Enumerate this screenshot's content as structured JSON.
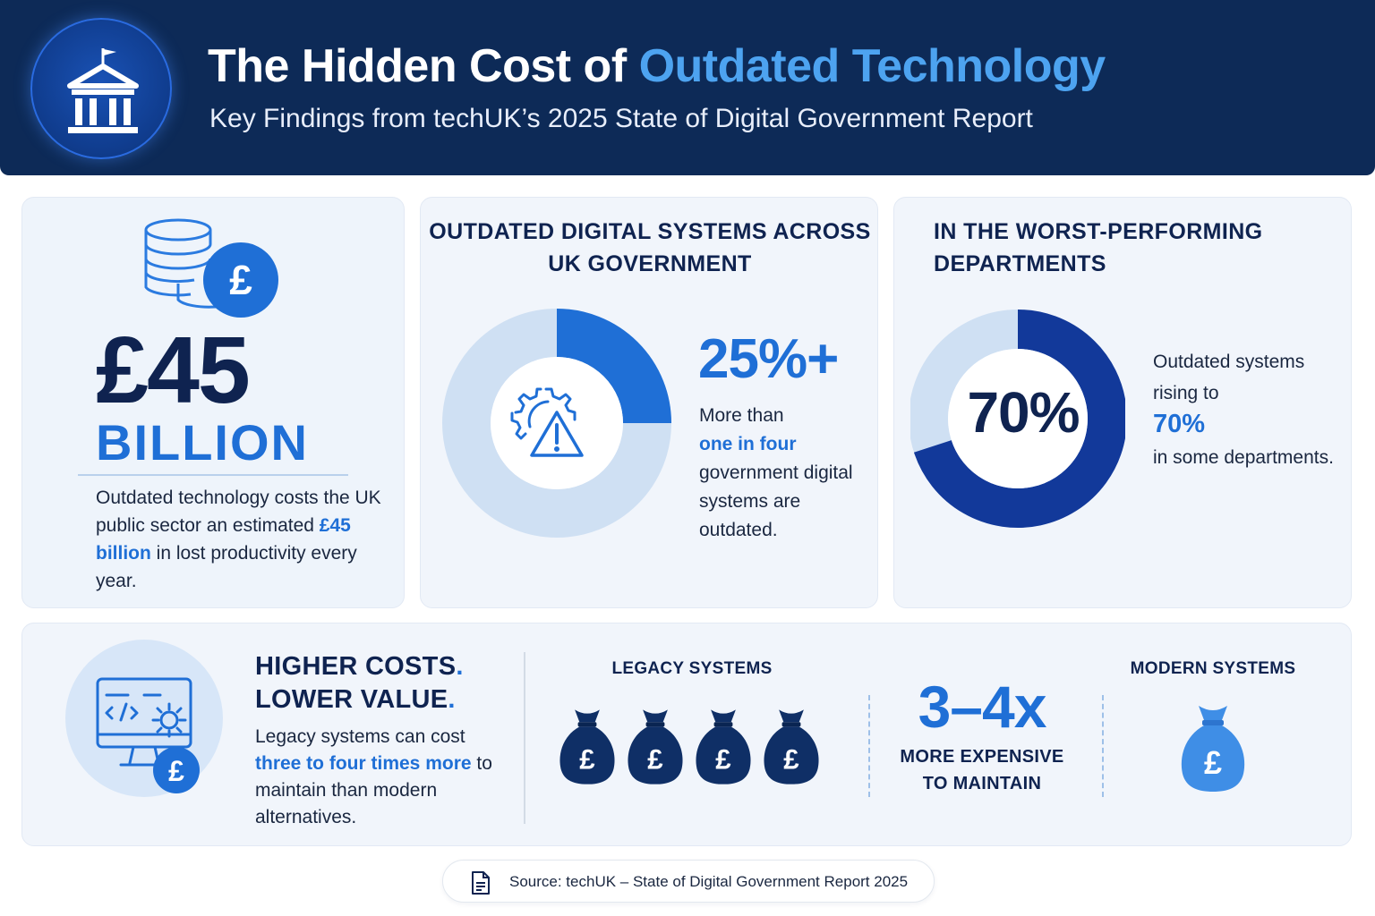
{
  "header": {
    "title_main": "The Hidden Cost of ",
    "title_accent": "Outdated Technology",
    "subtitle": "Key Findings from techUK’s 2025 State of Digital Government Report",
    "logo_icon": "government-building-icon"
  },
  "cost_card": {
    "icon": "coins-pound-icon",
    "amount": "£45",
    "unit": "BILLION",
    "desc_before": "Outdated technology costs the UK public sector an estimated ",
    "desc_highlight": "£45 billion",
    "desc_after": " in lost productivity every year."
  },
  "systems_card": {
    "title": "OUTDATED DIGITAL SYSTEMS ACROSS UK GOVERNMENT",
    "icon": "gear-warning-icon",
    "percent": "25%+",
    "donut_fraction": 0.25,
    "desc_before": "More than ",
    "desc_highlight": "one in four",
    "desc_after": " government digital systems are outdated."
  },
  "worst_card": {
    "title": "IN THE WORST-PERFORMING DEPARTMENTS",
    "donut_label": "70%",
    "donut_fraction": 0.7,
    "desc_before": "Outdated systems rising to",
    "desc_highlight": "70%",
    "desc_after": "in some departments."
  },
  "maintenance_card": {
    "icon": "computer-code-pound-icon",
    "title_line1": "HIGHER COSTS",
    "title_line2": "LOWER VALUE",
    "title_dot": ".",
    "desc_before": "Legacy systems can cost ",
    "desc_highlight": "three to four times more",
    "desc_after": " to maintain than modern alternatives.",
    "legacy_label": "LEGACY SYSTEMS",
    "legacy_bag_count": 4,
    "multiplier": "3–4x",
    "multiplier_sub": "MORE EXPENSIVE TO MAINTAIN",
    "modern_label": "MODERN SYSTEMS",
    "bag_symbol": "£"
  },
  "source": {
    "icon": "document-icon",
    "text": "Source: techUK – State of Digital Government Report 2025"
  },
  "colors": {
    "navy": "#0d2a57",
    "accent_blue": "#1f6fd6",
    "light_blue": "#4da3f0",
    "donut_track": "#cfe0f3",
    "donut_dark": "#12399a",
    "bag_dark": "#0f2f66",
    "bag_light": "#3f8ee6"
  }
}
